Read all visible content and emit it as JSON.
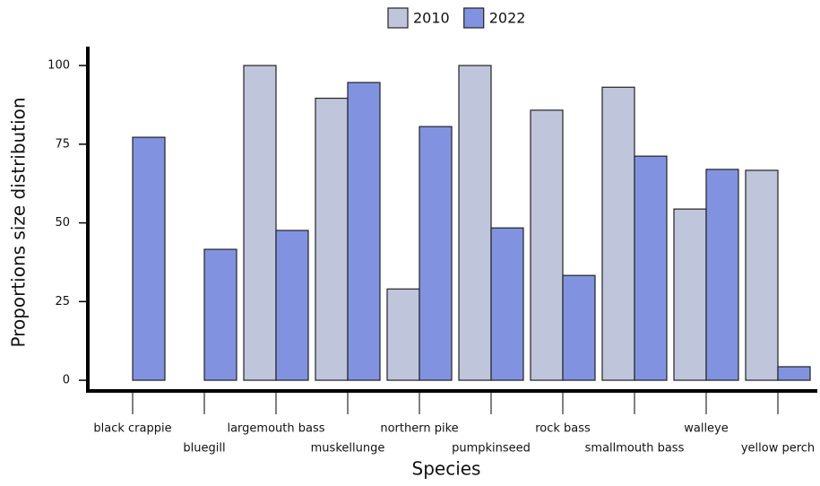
{
  "chart_data": {
    "type": "bar",
    "categories": [
      "black crappie",
      "bluegill",
      "largemouth bass",
      "muskellunge",
      "northern pike",
      "pumpkinseed",
      "rock bass",
      "smallmouth bass",
      "walleye",
      "yellow perch"
    ],
    "series": [
      {
        "name": "2010",
        "color": "#bfc6dc",
        "values": [
          null,
          0,
          100,
          89.6,
          29,
          100,
          85.8,
          93.1,
          54.4,
          66.7
        ]
      },
      {
        "name": "2022",
        "color": "#8193e0",
        "values": [
          77.2,
          41.6,
          47.6,
          94.6,
          80.6,
          48.4,
          33.3,
          71.2,
          67,
          4.3
        ]
      }
    ],
    "x_label": "Species",
    "y_label": "Proportions size distribution",
    "ylim": [
      -3.4,
      106
    ],
    "yticks": [
      0,
      25,
      50,
      75,
      100
    ],
    "legend": "top"
  }
}
